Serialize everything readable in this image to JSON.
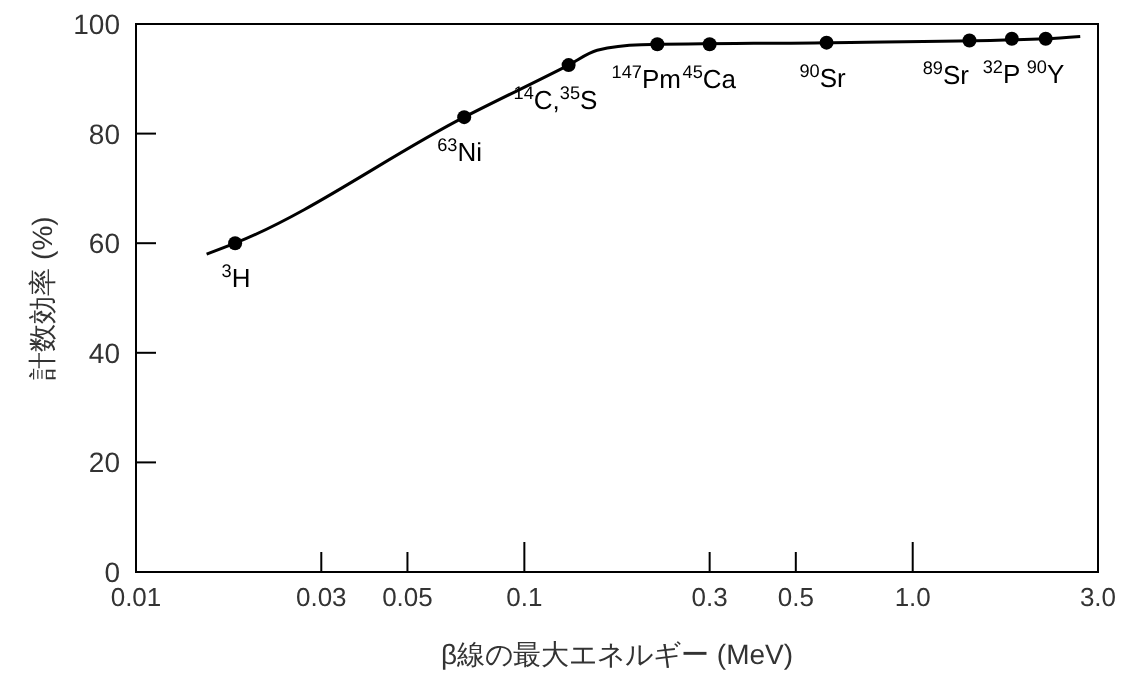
{
  "chart_data": {
    "type": "line",
    "xlabel": "β線の最大エネルギー (MeV)",
    "ylabel": "計数効率 (%)",
    "log": "x",
    "xlim": [
      0.01,
      3.0
    ],
    "xticks": [
      0.01,
      0.03,
      0.05,
      0.1,
      0.3,
      0.5,
      {
        "value": 1.0,
        "label": "1.0"
      },
      {
        "value": 3.0,
        "label": "3.0"
      }
    ],
    "ylim": [
      0,
      100
    ],
    "yticks": [
      0,
      20,
      40,
      60,
      80,
      100
    ],
    "grid": false,
    "series": [
      {
        "color": "#000000",
        "marker": "none",
        "x": [
          0.0152,
          0.018,
          0.07,
          0.13,
          0.154,
          0.2,
          0.6,
          2.2,
          2.7
        ],
        "values": [
          58,
          60,
          83,
          92.5,
          95.2,
          96.2,
          96.6,
          97.3,
          97.7
        ]
      },
      {
        "type": "scatter",
        "color": "#000000",
        "marker": "circle",
        "x": [
          0.018,
          0.07,
          0.13,
          0.22,
          0.3,
          0.6,
          1.4,
          1.8,
          2.2
        ],
        "values": [
          60,
          83,
          92.5,
          96.3,
          96.3,
          96.6,
          97,
          97.3,
          97.3
        ]
      }
    ],
    "annotations": [
      {
        "text": "$^{3}$H",
        "x": 0.018,
        "y": 60
      },
      {
        "text": "$^{63}$Ni",
        "x": 0.07,
        "y": 83
      },
      {
        "text": "$^{14}$C,$^{35}$S",
        "x": 0.13,
        "y": 92.5
      },
      {
        "text": "$^{147}$Pm",
        "x": 0.22,
        "y": 96.3
      },
      {
        "text": "$^{45}$Ca",
        "x": 0.3,
        "y": 96.3
      },
      {
        "text": "$^{90}$Sr",
        "x": 0.6,
        "y": 96.6
      },
      {
        "text": "$^{89}$Sr",
        "x": 1.4,
        "y": 97
      },
      {
        "text": "$^{32}$P",
        "x": 1.8,
        "y": 97.3
      },
      {
        "text": "$^{90}$Y",
        "x": 2.2,
        "y": 97.3
      }
    ]
  }
}
